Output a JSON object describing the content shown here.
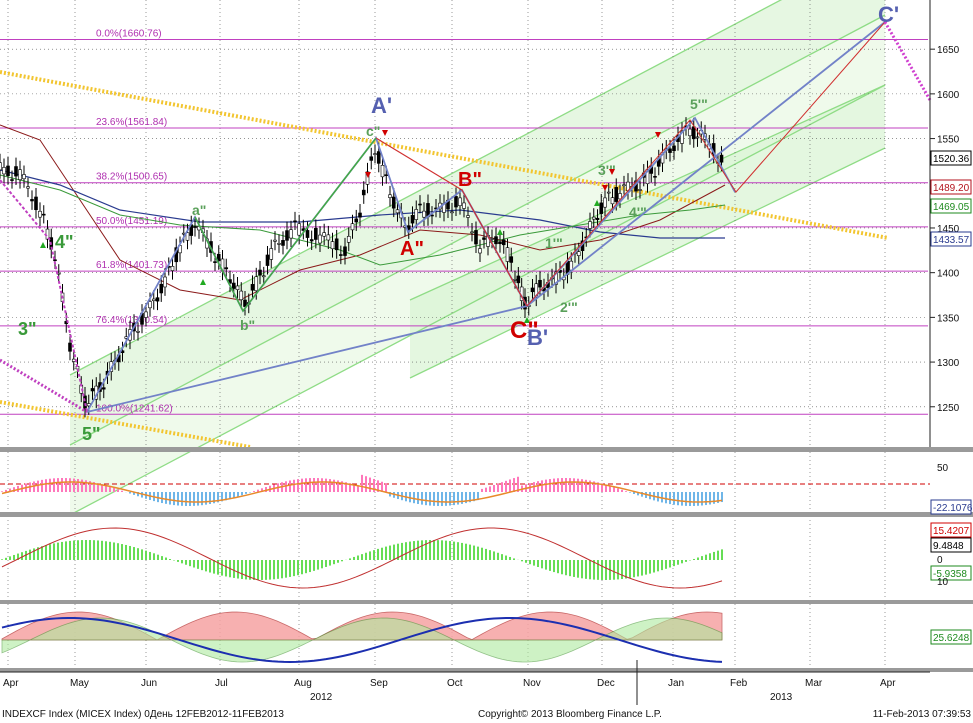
{
  "footer": {
    "left": "INDEXCF Index (MICEX Index) 0День 12FEB2012-11FEB2013",
    "center": "Copyright© 2013 Bloomberg Finance L.P.",
    "right": "11-Feb-2013 07:39:53"
  },
  "chart_data": {
    "type": "candlestick",
    "main": {
      "y_ticks": [
        1250,
        1300,
        1350,
        1400,
        1450,
        1500,
        1550,
        1600,
        1650
      ],
      "ylim": [
        1205,
        1705
      ],
      "fib_levels": [
        {
          "label": "0.0%(1660.76)",
          "value": 1660.76
        },
        {
          "label": "23.6%(1561.84)",
          "value": 1561.84
        },
        {
          "label": "38.2%(1500.65)",
          "value": 1500.65
        },
        {
          "label": "50.0%(1451.19)",
          "value": 1451.19
        },
        {
          "label": "61.8%(1401.73)",
          "value": 1401.73
        },
        {
          "label": "76.4%(1340.54)",
          "value": 1340.54
        },
        {
          "label": "100.0%(1241.62)",
          "value": 1241.62
        }
      ],
      "value_tags": [
        {
          "label": "1520.36",
          "color": "#000000"
        },
        {
          "label": "1489.20",
          "color": "#b3121c"
        },
        {
          "label": "1469.05",
          "color": "#1e8a1e"
        },
        {
          "label": "1433.57",
          "color": "#2a3b8f"
        }
      ],
      "wave_labels": [
        {
          "text": "A'",
          "color": "#5560b0"
        },
        {
          "text": "C'",
          "color": "#5560b0"
        },
        {
          "text": "B'",
          "color": "#5560b0"
        },
        {
          "text": "A\"",
          "color": "#d00000"
        },
        {
          "text": "B\"",
          "color": "#d00000"
        },
        {
          "text": "C\"",
          "color": "#d00000"
        },
        {
          "text": "c\"",
          "color": "#5aa05a"
        },
        {
          "text": "a\"",
          "color": "#5aa05a"
        },
        {
          "text": "b\"",
          "color": "#5aa05a"
        },
        {
          "text": "3\"",
          "color": "#3a9a3a"
        },
        {
          "text": "4\"",
          "color": "#3a9a3a"
        },
        {
          "text": "5\"",
          "color": "#3a9a3a"
        },
        {
          "text": "1'\"",
          "color": "#5aa05a"
        },
        {
          "text": "2'\"",
          "color": "#5aa05a"
        },
        {
          "text": "3'\"",
          "color": "#5aa05a"
        },
        {
          "text": "4'\"",
          "color": "#5aa05a"
        },
        {
          "text": "5'\"",
          "color": "#5aa05a"
        }
      ]
    },
    "x_ticks": [
      "Apr",
      "May",
      "Jun",
      "Jul",
      "Aug",
      "Sep",
      "Oct",
      "Nov",
      "Dec",
      "Jan",
      "Feb",
      "Mar",
      "Apr"
    ],
    "year_labels": [
      "2012",
      "2013"
    ],
    "panels": [
      {
        "name": "oscillator-1",
        "y_ticks": [
          "50"
        ],
        "tag": {
          "label": "-22.1076",
          "color": "#2a3b8f"
        }
      },
      {
        "name": "oscillator-2",
        "y_ticks": [
          "0",
          "10"
        ],
        "tags": [
          {
            "label": "15.4207",
            "color": "#d00000"
          },
          {
            "label": "9.4848",
            "color": "#000000"
          },
          {
            "label": "-5.9358",
            "color": "#1e8a1e"
          }
        ]
      },
      {
        "name": "oscillator-3",
        "tag": {
          "label": "25.6248",
          "color": "#1e8a1e"
        }
      }
    ]
  }
}
